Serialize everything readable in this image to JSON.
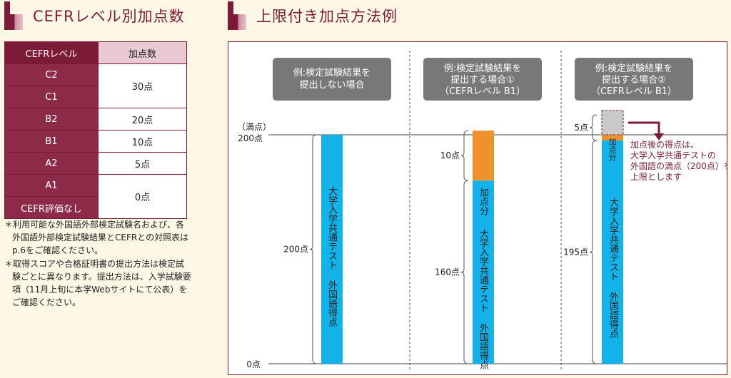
{
  "left_section": {
    "title": "CEFRレベル別加点数"
  },
  "right_section": {
    "title": "上限付き加点方法例"
  },
  "table": {
    "headers": [
      "CEFRレベル",
      "加点数"
    ],
    "rows": [
      {
        "level": "C2"
      },
      {
        "level": "C1"
      },
      {
        "level": "B2"
      },
      {
        "level": "B1"
      },
      {
        "level": "A2"
      },
      {
        "level": "A1"
      },
      {
        "level": "CEFR評価なし"
      }
    ],
    "points": [
      "30点",
      "20点",
      "10点",
      "5点",
      "0点"
    ]
  },
  "notes": [
    "＊利用可能な外国語外部検定試験名および、各外国語外部検定試験結果とCEFRとの対照表はp.6をご確認ください。",
    "＊取得スコアや合格証明書の提出方法は検定試験ごとに異なります。提出方法は、入学試験要項（11月上旬に本学Webサイトにて公表）をご確認ください。"
  ],
  "diagram": {
    "examples": [
      {
        "label": [
          "例:検定試験結果を",
          "提出しない場合"
        ]
      },
      {
        "label": [
          "例:検定試験結果を",
          "提出する場合①",
          "（CEFRレベル B1）"
        ]
      },
      {
        "label": [
          "例:検定試験結果を",
          "提出する場合②",
          "（CEFRレベル B1）"
        ]
      }
    ],
    "axis": {
      "full_label": "（満点）",
      "top_label": "200点",
      "bottom_label": "0点"
    },
    "bars": [
      {
        "base": 200,
        "bonus": 0,
        "base_label": "200点"
      },
      {
        "base": 160,
        "bonus": 10,
        "base_label": "160点",
        "bonus_label": "10点"
      },
      {
        "base": 195,
        "bonus": 5,
        "base_label": "195点",
        "bonus_label": "5点"
      }
    ],
    "bar_text": "大学入学共通テスト 外国語得点",
    "bonus_text": "加点分",
    "bonus_text_short": "加点分",
    "note": [
      "加点後の得点は、",
      "大学入学共通テストの",
      "外国語の満点（200点）を",
      "上限とします"
    ],
    "colors": {
      "base": "#13b2e8",
      "bonus": "#f0922c",
      "accent": "#7c1a37",
      "box": "#777777"
    }
  }
}
